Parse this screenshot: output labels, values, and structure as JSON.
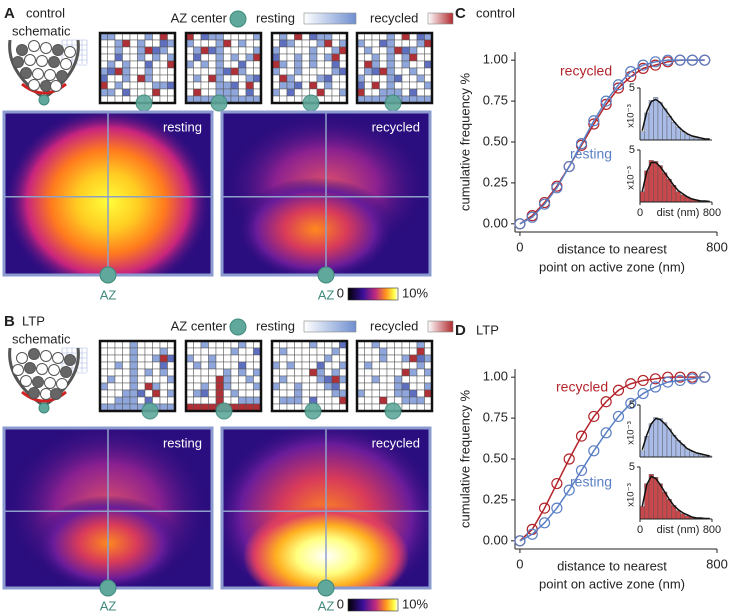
{
  "panels": [
    {
      "label": "A",
      "schematic_title": [
        "control",
        "schematic"
      ],
      "legend": {
        "az_center": "AZ center",
        "resting": "resting",
        "recycled": "recycled"
      },
      "heatmaps": [
        "resting",
        "recycled"
      ],
      "az_label": [
        "AZ",
        "AZ"
      ],
      "colorbar": [
        "0",
        "10%"
      ]
    },
    {
      "label": "B",
      "schematic_title": [
        "LTP",
        "schematic"
      ],
      "legend": {
        "az_center": "AZ center",
        "resting": "resting",
        "recycled": "recycled"
      },
      "heatmaps": [
        "resting",
        "recycled"
      ],
      "az_label": [
        "AZ",
        "AZ"
      ],
      "colorbar": [
        "0",
        "10%"
      ]
    }
  ],
  "chart_data": [
    {
      "type": "line",
      "panel_label": "C",
      "title": "control",
      "ylabel": "cumulative frequency %",
      "xlabel": [
        "distance to nearest",
        "point on active zone (nm)"
      ],
      "x": [
        0,
        50,
        100,
        150,
        200,
        250,
        300,
        350,
        400,
        450,
        500,
        550,
        600,
        650,
        700,
        750
      ],
      "series": [
        {
          "name": "recycled",
          "color": "#b3242b",
          "values": [
            0,
            0.05,
            0.13,
            0.23,
            0.35,
            0.48,
            0.61,
            0.73,
            0.83,
            0.9,
            0.95,
            0.97,
            0.99,
            1.0,
            1.0,
            1.0
          ]
        },
        {
          "name": "resting",
          "color": "#5a7fc4",
          "values": [
            0,
            0.04,
            0.12,
            0.22,
            0.35,
            0.49,
            0.63,
            0.75,
            0.85,
            0.93,
            0.97,
            0.99,
            1.0,
            1.0,
            1.0,
            1.0
          ]
        }
      ],
      "xlim": [
        -20,
        800
      ],
      "ylim": [
        -0.05,
        1.05
      ],
      "xticks": [
        0,
        800
      ],
      "yticks": [
        {
          "value": 0,
          "label": "0.00"
        },
        {
          "value": 0.25,
          "label": "0.25"
        },
        {
          "value": 0.5,
          "label": "0.50"
        },
        {
          "value": 0.75,
          "label": "0.75"
        },
        {
          "value": 1,
          "label": "1.00"
        }
      ],
      "insets": [
        {
          "type": "histogram",
          "color": "#a9bbe6",
          "bins": [
            0,
            50,
            100,
            150,
            200,
            250,
            300,
            350,
            400,
            450,
            500,
            550,
            600,
            650,
            700,
            750,
            800
          ],
          "values": [
            0.8,
            2.6,
            3.8,
            4.1,
            3.6,
            3.0,
            2.3,
            1.7,
            1.2,
            0.8,
            0.5,
            0.3,
            0.2,
            0.1,
            0.1,
            0
          ],
          "fit": [
            0.9,
            2.7,
            3.7,
            3.9,
            3.6,
            3.0,
            2.4,
            1.8,
            1.3,
            0.9,
            0.6,
            0.4,
            0.3,
            0.2,
            0.1,
            0.1
          ],
          "xlim": [
            0,
            800
          ],
          "ylim": [
            0,
            5
          ],
          "yticks": [
            5
          ],
          "ylabel": "x10⁻³"
        },
        {
          "type": "histogram",
          "color": "#c8484c",
          "bins": [
            0,
            50,
            100,
            150,
            200,
            250,
            300,
            350,
            400,
            450,
            500,
            550,
            600,
            650,
            700,
            750,
            800
          ],
          "values": [
            1.0,
            3.0,
            4.0,
            3.9,
            3.5,
            2.8,
            2.2,
            1.6,
            1.0,
            0.7,
            0.5,
            0.3,
            0.2,
            0.1,
            0,
            0
          ],
          "fit": [
            1.0,
            2.9,
            3.8,
            3.8,
            3.4,
            2.8,
            2.2,
            1.6,
            1.1,
            0.8,
            0.5,
            0.3,
            0.2,
            0.1,
            0.1,
            0.05
          ],
          "xlim": [
            0,
            800
          ],
          "ylim": [
            0,
            5
          ],
          "yticks": [
            5
          ],
          "xticks": [
            0,
            800
          ],
          "ylabel": "x10⁻³",
          "xlabel": "dist (nm)"
        }
      ]
    },
    {
      "type": "line",
      "panel_label": "D",
      "title": "LTP",
      "ylabel": "cumulative frequency %",
      "xlabel": [
        "distance to nearest",
        "point on active zone (nm)"
      ],
      "x": [
        0,
        50,
        100,
        150,
        200,
        250,
        300,
        350,
        400,
        450,
        500,
        550,
        600,
        650,
        700,
        750
      ],
      "series": [
        {
          "name": "recycled",
          "color": "#b3242b",
          "values": [
            0,
            0.07,
            0.2,
            0.35,
            0.5,
            0.64,
            0.76,
            0.85,
            0.92,
            0.96,
            0.98,
            0.99,
            1.0,
            1.0,
            1.0,
            1.0
          ]
        },
        {
          "name": "resting",
          "color": "#5a7fc4",
          "values": [
            0,
            0.04,
            0.11,
            0.2,
            0.31,
            0.43,
            0.55,
            0.66,
            0.76,
            0.84,
            0.9,
            0.94,
            0.97,
            0.98,
            0.99,
            1.0
          ]
        }
      ],
      "xlim": [
        -20,
        800
      ],
      "ylim": [
        -0.05,
        1.05
      ],
      "xticks": [
        0,
        800
      ],
      "yticks": [
        {
          "value": 0,
          "label": "0.00"
        },
        {
          "value": 0.25,
          "label": "0.25"
        },
        {
          "value": 0.5,
          "label": "0.50"
        },
        {
          "value": 0.75,
          "label": "0.75"
        },
        {
          "value": 1,
          "label": "1.00"
        }
      ],
      "insets": [
        {
          "type": "histogram",
          "color": "#a9bbe6",
          "bins": [
            0,
            50,
            100,
            150,
            200,
            250,
            300,
            350,
            400,
            450,
            500,
            550,
            600,
            650,
            700,
            750,
            800
          ],
          "values": [
            0.6,
            2.0,
            3.2,
            3.8,
            3.7,
            3.3,
            2.7,
            2.1,
            1.6,
            1.2,
            0.8,
            0.5,
            0.3,
            0.2,
            0.1,
            0.1
          ],
          "fit": [
            0.7,
            2.1,
            3.2,
            3.7,
            3.6,
            3.2,
            2.7,
            2.1,
            1.6,
            1.2,
            0.8,
            0.6,
            0.4,
            0.3,
            0.2,
            0.1
          ],
          "xlim": [
            0,
            800
          ],
          "ylim": [
            0,
            5
          ],
          "yticks": [
            5
          ],
          "ylabel": "x10⁻³"
        },
        {
          "type": "histogram",
          "color": "#c8484c",
          "bins": [
            0,
            50,
            100,
            150,
            200,
            250,
            300,
            350,
            400,
            450,
            500,
            550,
            600,
            650,
            700,
            750,
            800
          ],
          "values": [
            1.2,
            3.4,
            4.3,
            4.0,
            3.4,
            2.6,
            1.9,
            1.3,
            0.8,
            0.5,
            0.3,
            0.2,
            0.1,
            0.1,
            0,
            0
          ],
          "fit": [
            1.2,
            3.3,
            4.1,
            3.9,
            3.3,
            2.6,
            1.9,
            1.3,
            0.9,
            0.6,
            0.4,
            0.2,
            0.1,
            0.1,
            0.05,
            0.05
          ],
          "xlim": [
            0,
            800
          ],
          "ylim": [
            0,
            5
          ],
          "yticks": [
            5
          ],
          "xticks": [
            0,
            800
          ],
          "ylabel": "x10⁻³",
          "xlabel": "dist (nm)"
        }
      ]
    }
  ]
}
